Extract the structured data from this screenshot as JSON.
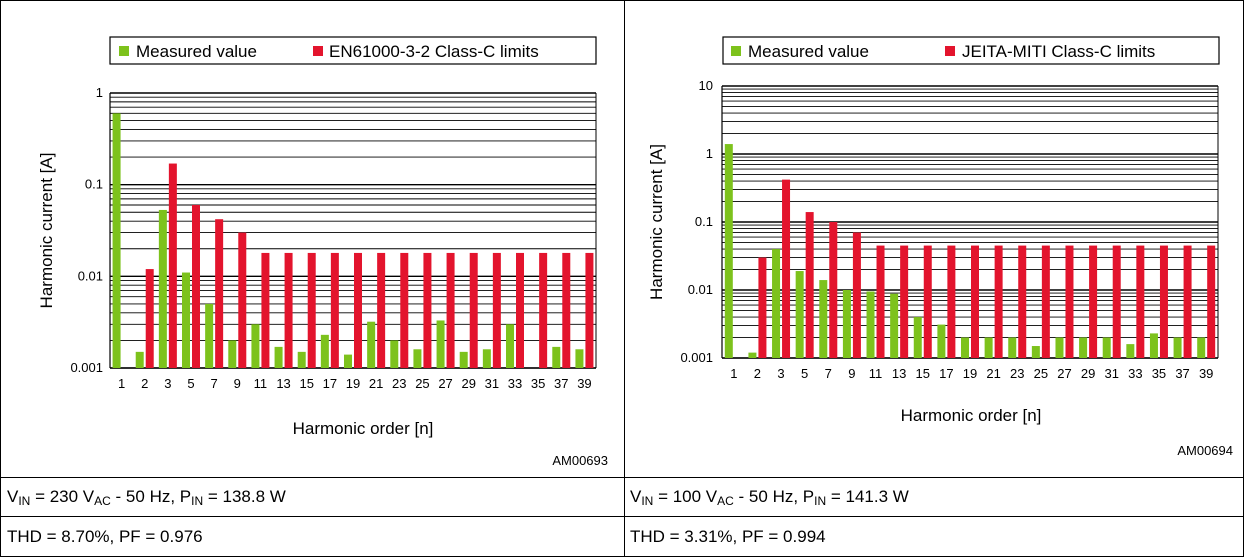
{
  "chart_data": [
    {
      "type": "bar",
      "scale": "log",
      "ylim": [
        0.001,
        1
      ],
      "xlabel": "Harmonic order [n]",
      "ylabel": "Harmonic current [A]",
      "ticks": [
        "1",
        "0.1",
        "0.01",
        "0.001"
      ],
      "figure_id": "AM00693",
      "categories": [
        "1",
        "2",
        "3",
        "5",
        "7",
        "9",
        "11",
        "13",
        "15",
        "17",
        "19",
        "21",
        "23",
        "25",
        "27",
        "29",
        "31",
        "33",
        "35",
        "37",
        "39"
      ],
      "series": [
        {
          "name": "Measured value",
          "color": "#7dc21c",
          "values": [
            0.6,
            0.0015,
            0.053,
            0.011,
            0.005,
            0.002,
            0.003,
            0.0017,
            0.0015,
            0.0023,
            0.0014,
            0.0032,
            0.002,
            0.0016,
            0.0033,
            0.0015,
            0.0016,
            0.003,
            null,
            0.0017,
            0.0016
          ]
        },
        {
          "name": "EN61000-3-2 Class-C limits",
          "color": "#e3142d",
          "values": [
            null,
            0.012,
            0.17,
            0.06,
            0.042,
            0.03,
            0.018,
            0.018,
            0.018,
            0.018,
            0.018,
            0.018,
            0.018,
            0.018,
            0.018,
            0.018,
            0.018,
            0.018,
            0.018,
            0.018,
            0.018
          ]
        }
      ],
      "legend": "top"
    },
    {
      "type": "bar",
      "scale": "log",
      "ylim": [
        0.001,
        10
      ],
      "xlabel": "Harmonic order [n]",
      "ylabel": "Harmonic current [A]",
      "ticks": [
        "10",
        "1",
        "0.1",
        "0.01",
        "0.001"
      ],
      "figure_id": "AM00694",
      "categories": [
        "1",
        "2",
        "3",
        "5",
        "7",
        "9",
        "11",
        "13",
        "15",
        "17",
        "19",
        "21",
        "23",
        "25",
        "27",
        "29",
        "31",
        "33",
        "35",
        "37",
        "39"
      ],
      "series": [
        {
          "name": "Measured value",
          "color": "#7dc21c",
          "values": [
            1.4,
            0.0012,
            0.04,
            0.019,
            0.014,
            0.01,
            0.0095,
            0.0088,
            0.004,
            0.0031,
            0.002,
            0.002,
            0.002,
            0.0015,
            0.002,
            0.002,
            0.002,
            0.0016,
            0.0023,
            0.002,
            0.002
          ]
        },
        {
          "name": "JEITA-MITI Class-C limits",
          "color": "#e3142d",
          "values": [
            null,
            0.03,
            0.42,
            0.14,
            0.1,
            0.07,
            0.045,
            0.045,
            0.045,
            0.045,
            0.045,
            0.045,
            0.045,
            0.045,
            0.045,
            0.045,
            0.045,
            0.045,
            0.045,
            0.045,
            0.045
          ]
        }
      ],
      "legend": "top"
    }
  ],
  "conditions": [
    {
      "line1": {
        "v": "V",
        "v_sub": "IN",
        "eq1": " = 230 V",
        "ac_sub": "AC",
        "rest": " - 50 Hz, P",
        "p_sub": "IN",
        "p_val": " = 138.8 W"
      },
      "line2": "THD = 8.70%, PF = 0.976"
    },
    {
      "line1": {
        "v": "V",
        "v_sub": "IN",
        "eq1": " = 100 V",
        "ac_sub": "AC",
        "rest": " - 50 Hz, P",
        "p_sub": "IN",
        "p_val": " = 141.3 W"
      },
      "line2": "THD = 3.31%, PF = 0.994"
    }
  ]
}
